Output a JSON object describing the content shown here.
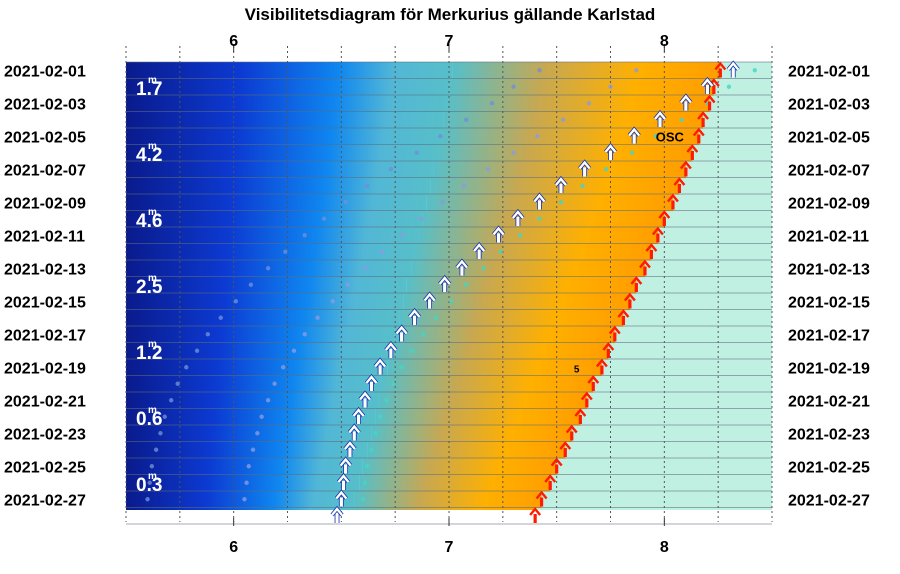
{
  "chart_data": {
    "type": "scatter",
    "title": "Visibilitetsdiagram för Merkurius gällande Karlstad",
    "xlabel": "",
    "ylabel": "",
    "x_ticks": [
      "6",
      "7",
      "8"
    ],
    "xlim": [
      5.5,
      8.5
    ],
    "dates": [
      "2021-02-01",
      "2021-02-02",
      "2021-02-03",
      "2021-02-04",
      "2021-02-05",
      "2021-02-06",
      "2021-02-07",
      "2021-02-08",
      "2021-02-09",
      "2021-02-10",
      "2021-02-11",
      "2021-02-12",
      "2021-02-13",
      "2021-02-14",
      "2021-02-15",
      "2021-02-16",
      "2021-02-17",
      "2021-02-18",
      "2021-02-19",
      "2021-02-20",
      "2021-02-21",
      "2021-02-22",
      "2021-02-23",
      "2021-02-24",
      "2021-02-25",
      "2021-02-26",
      "2021-02-27",
      "2021-02-28"
    ],
    "y_tick_labels": [
      "2021-02-01",
      "2021-02-03",
      "2021-02-05",
      "2021-02-07",
      "2021-02-09",
      "2021-02-11",
      "2021-02-13",
      "2021-02-15",
      "2021-02-17",
      "2021-02-19",
      "2021-02-21",
      "2021-02-23",
      "2021-02-25",
      "2021-02-27"
    ],
    "magnitudes": [
      {
        "date": "2021-02-02",
        "label": "1.7"
      },
      {
        "date": "2021-02-06",
        "label": "4.2"
      },
      {
        "date": "2021-02-10",
        "label": "4.6"
      },
      {
        "date": "2021-02-14",
        "label": "2.5"
      },
      {
        "date": "2021-02-18",
        "label": "1.2"
      },
      {
        "date": "2021-02-22",
        "label": "0.6"
      },
      {
        "date": "2021-02-26",
        "label": "0.3"
      }
    ],
    "sunrise": [
      8.26,
      8.23,
      8.21,
      8.18,
      8.16,
      8.13,
      8.1,
      8.07,
      8.04,
      8.0,
      7.97,
      7.94,
      7.91,
      7.87,
      7.84,
      7.81,
      7.77,
      7.74,
      7.71,
      7.67,
      7.64,
      7.61,
      7.57,
      7.54,
      7.5,
      7.47,
      7.43,
      7.4
    ],
    "mercury_rise": [
      8.32,
      8.2,
      8.1,
      7.98,
      7.86,
      7.75,
      7.63,
      7.52,
      7.42,
      7.32,
      7.23,
      7.14,
      7.06,
      6.98,
      6.91,
      6.84,
      6.78,
      6.73,
      6.68,
      6.64,
      6.61,
      6.58,
      6.56,
      6.54,
      6.52,
      6.51,
      6.5,
      6.48
    ],
    "markers": [
      {
        "date": "2021-02-05",
        "label": "OSC"
      },
      {
        "date": "2021-02-19",
        "label": "5"
      }
    ],
    "colors": {
      "night": "#0a1a8c",
      "twilight_blue": "#0f86f0",
      "orange": "#ffb000",
      "daylight": "#c0f0e2",
      "sun_arrow": "#ff1a00",
      "mercury_arrow": "#ffffff"
    },
    "grid": true
  }
}
